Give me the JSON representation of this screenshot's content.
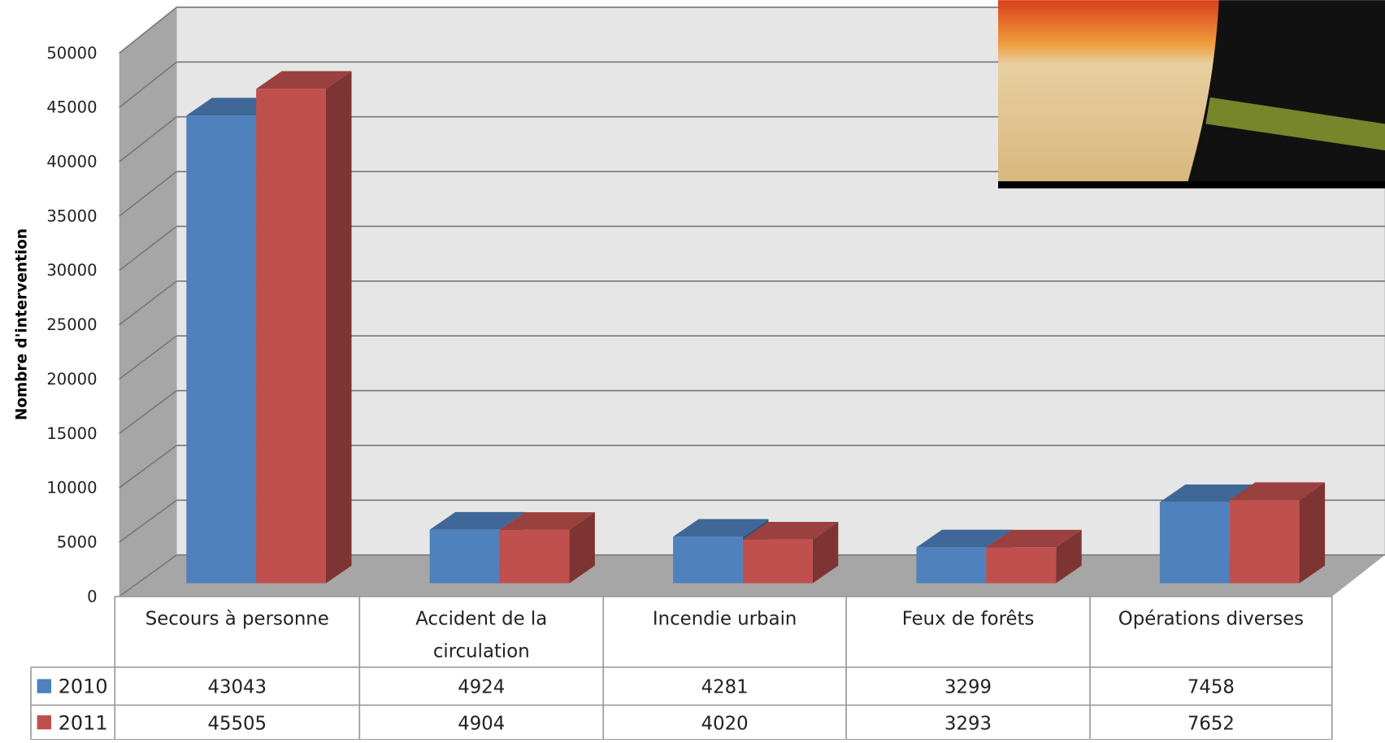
{
  "chart_data": {
    "type": "bar3d",
    "y_label": "Nombre d'intervention",
    "categories": [
      "Secours à personne",
      "Accident de la circulation",
      "Incendie urbain",
      "Feux de forêts",
      "Opérations diverses"
    ],
    "series": [
      {
        "name": "2010",
        "color": "#4f81bd",
        "values": [
          43043,
          4924,
          4281,
          3299,
          7458
        ]
      },
      {
        "name": "2011",
        "color": "#c0504d",
        "values": [
          45505,
          4904,
          4020,
          3293,
          7652
        ]
      }
    ],
    "ylim": [
      0,
      50000
    ],
    "yticks": [
      0,
      5000,
      10000,
      15000,
      20000,
      25000,
      30000,
      35000,
      40000,
      45000,
      50000
    ],
    "grid": true,
    "data_table": true
  }
}
